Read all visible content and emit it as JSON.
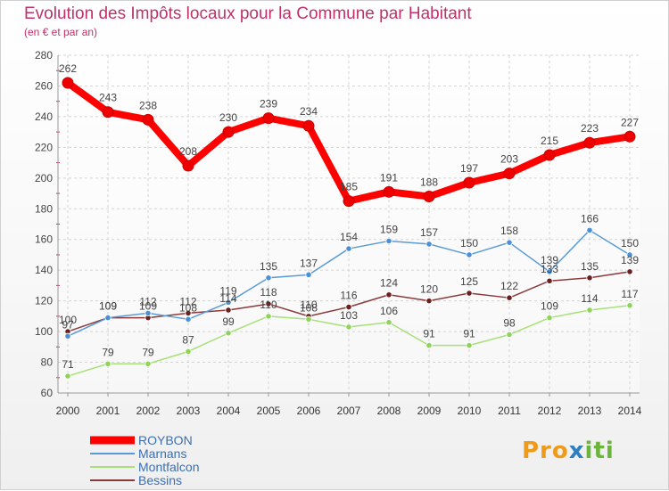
{
  "chart_data": {
    "type": "line",
    "title": "Evolution des Impôts locaux pour la Commune par Habitant",
    "subtitle": "(en € et par an)",
    "xlabel": "",
    "ylabel": "",
    "ylim": [
      60,
      280
    ],
    "yticks": [
      60,
      80,
      100,
      120,
      140,
      160,
      180,
      200,
      220,
      240,
      260,
      280
    ],
    "categories": [
      "2000",
      "2001",
      "2002",
      "2003",
      "2004",
      "2005",
      "2006",
      "2007",
      "2008",
      "2009",
      "2010",
      "2011",
      "2012",
      "2013",
      "2014"
    ],
    "grid": true,
    "legend_position": "bottom-left",
    "series": [
      {
        "name": "ROYBON",
        "color": "#ff0000",
        "marker_color": "#ee0000",
        "values": [
          262,
          243,
          238,
          208,
          230,
          239,
          234,
          185,
          191,
          188,
          197,
          203,
          215,
          223,
          227
        ]
      },
      {
        "name": "Marnans",
        "color": "#5b9bd5",
        "marker_color": "#4a90d6",
        "values": [
          97,
          109,
          112,
          108,
          119,
          135,
          137,
          154,
          159,
          157,
          150,
          158,
          139,
          166,
          150
        ]
      },
      {
        "name": "Montfalcon",
        "color": "#a8e07a",
        "marker_color": "#8fd35a",
        "values": [
          71,
          79,
          79,
          87,
          99,
          110,
          108,
          103,
          106,
          91,
          91,
          98,
          109,
          114,
          117
        ]
      },
      {
        "name": "Bessins",
        "color": "#8b3a3a",
        "marker_color": "#6b2020",
        "values": [
          100,
          109,
          109,
          112,
          114,
          118,
          110,
          116,
          124,
          120,
          125,
          122,
          133,
          135,
          139
        ]
      }
    ]
  },
  "logo": {
    "part1": "Pro",
    "part2": "x",
    "part3": "iti"
  }
}
